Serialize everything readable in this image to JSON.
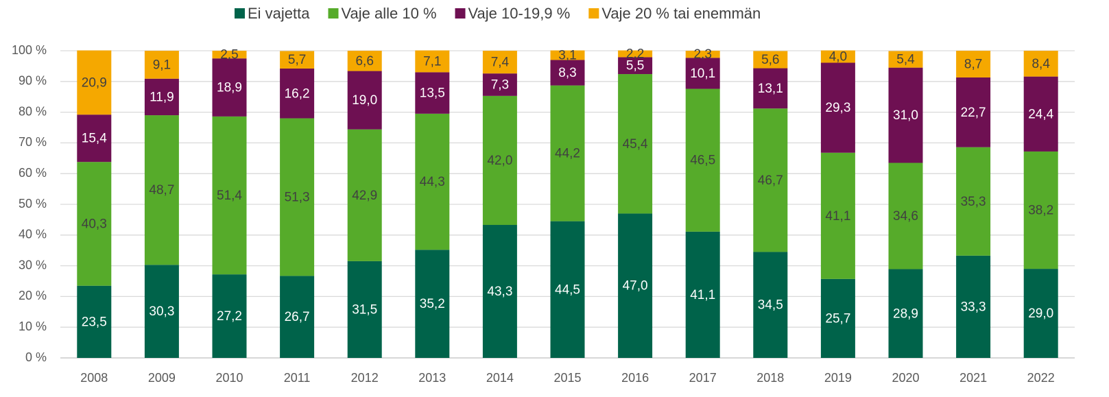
{
  "chart_data": {
    "type": "stacked_bar",
    "categories": [
      "2008",
      "2009",
      "2010",
      "2011",
      "2012",
      "2013",
      "2014",
      "2015",
      "2016",
      "2017",
      "2018",
      "2019",
      "2020",
      "2021",
      "2022"
    ],
    "series": [
      {
        "name": "Ei vajetta",
        "color": "#00634a",
        "label_color": "#ffffff",
        "values": [
          23.5,
          30.3,
          27.2,
          26.7,
          31.5,
          35.2,
          43.3,
          44.5,
          47.0,
          41.1,
          34.5,
          25.7,
          28.9,
          33.3,
          29.0
        ],
        "value_labels": [
          "23,5",
          "30,3",
          "27,2",
          "26,7",
          "31,5",
          "35,2",
          "43,3",
          "44,5",
          "47,0",
          "41,1",
          "34,5",
          "25,7",
          "28,9",
          "33,3",
          "29,0"
        ]
      },
      {
        "name": "Vaje alle 10 %",
        "color": "#56ab2a",
        "label_color": "#404040",
        "values": [
          40.3,
          48.7,
          51.4,
          51.3,
          42.9,
          44.3,
          42.0,
          44.2,
          45.4,
          46.5,
          46.7,
          41.1,
          34.6,
          35.3,
          38.2
        ],
        "value_labels": [
          "40,3",
          "48,7",
          "51,4",
          "51,3",
          "42,9",
          "44,3",
          "42,0",
          "44,2",
          "45,4",
          "46,5",
          "46,7",
          "41,1",
          "34,6",
          "35,3",
          "38,2"
        ]
      },
      {
        "name": "Vaje 10-19,9 %",
        "color": "#6e1052",
        "label_color": "#ffffff",
        "values": [
          15.4,
          11.9,
          18.9,
          16.2,
          19.0,
          13.5,
          7.3,
          8.3,
          5.5,
          10.1,
          13.1,
          29.3,
          31.0,
          22.7,
          24.4
        ],
        "value_labels": [
          "15,4",
          "11,9",
          "18,9",
          "16,2",
          "19,0",
          "13,5",
          "7,3",
          "8,3",
          "5,5",
          "10,1",
          "13,1",
          "29,3",
          "31,0",
          "22,7",
          "24,4"
        ]
      },
      {
        "name": "Vaje 20 % tai enemmän",
        "color": "#f5a800",
        "label_color": "#404040",
        "values": [
          20.9,
          9.1,
          2.5,
          5.7,
          6.6,
          7.1,
          7.4,
          3.1,
          2.2,
          2.3,
          5.6,
          4.0,
          5.4,
          8.7,
          8.4
        ],
        "value_labels": [
          "20,9",
          "9,1",
          "2,5",
          "5,7",
          "6,6",
          "7,1",
          "7,4",
          "3,1",
          "2,2",
          "2,3",
          "5,6",
          "4,0",
          "5,4",
          "8,7",
          "8,4"
        ]
      }
    ],
    "ylim": [
      0,
      100
    ],
    "yticks": [
      {
        "value": 0,
        "label": "0 %"
      },
      {
        "value": 10,
        "label": "10 %"
      },
      {
        "value": 20,
        "label": "20 %"
      },
      {
        "value": 30,
        "label": "30 %"
      },
      {
        "value": 40,
        "label": "40 %"
      },
      {
        "value": 50,
        "label": "50 %"
      },
      {
        "value": 60,
        "label": "60 %"
      },
      {
        "value": 70,
        "label": "70 %"
      },
      {
        "value": 80,
        "label": "80 %"
      },
      {
        "value": 90,
        "label": "90 %"
      },
      {
        "value": 100,
        "label": "100 %"
      }
    ],
    "grid": true,
    "legend": "top"
  }
}
